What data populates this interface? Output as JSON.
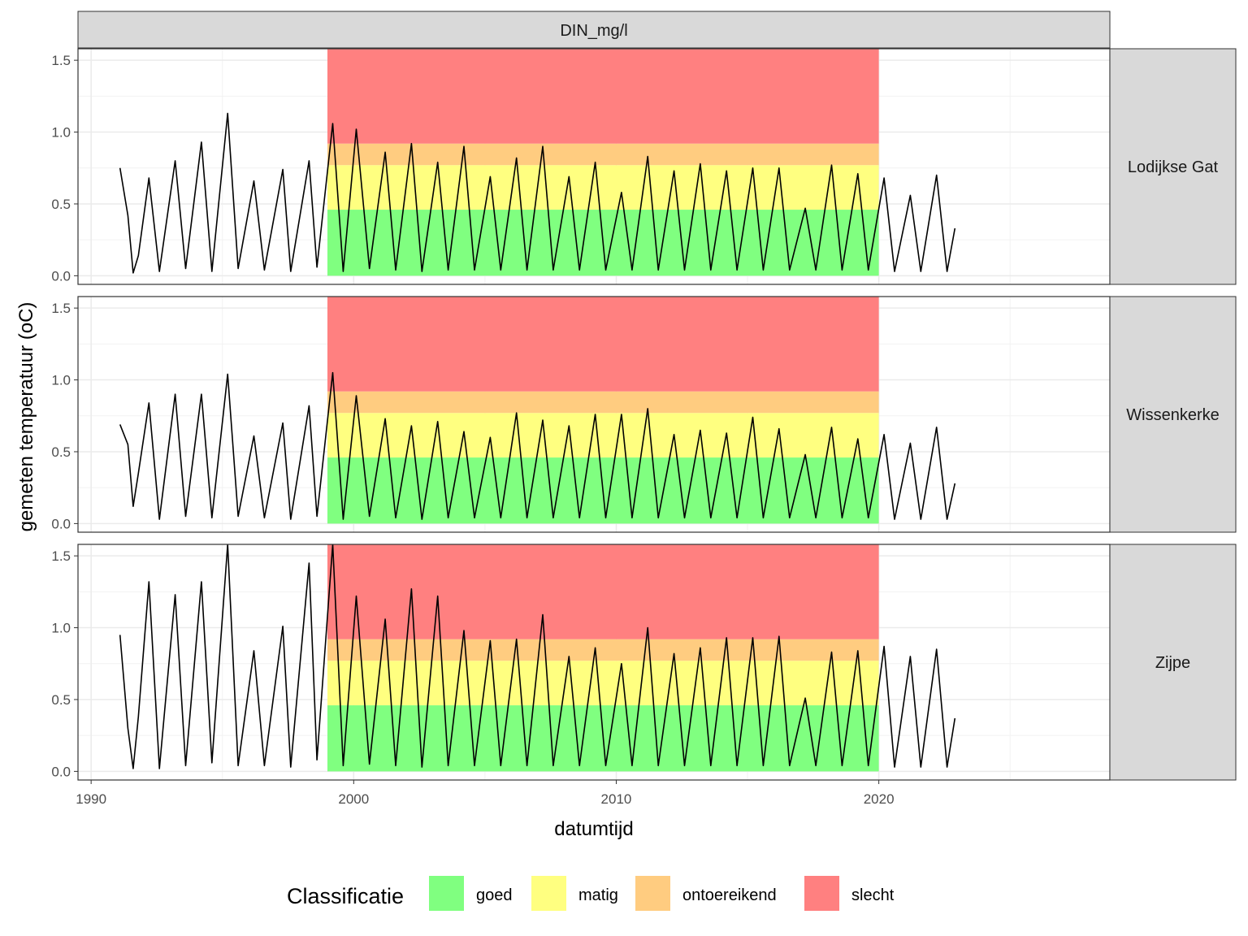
{
  "chart_data": {
    "type": "line",
    "facet_column_label": "DIN_mg/l",
    "xlabel": "datumtijd",
    "ylabel": "gemeten temperatuur (oC)",
    "xlim": [
      1989.5,
      2028.8
    ],
    "ylim": [
      -0.06,
      1.58
    ],
    "x_ticks": [
      1990,
      2000,
      2010,
      2020
    ],
    "y_ticks": [
      0.0,
      0.5,
      1.0,
      1.5
    ],
    "y_tick_labels": [
      "0.0",
      "0.5",
      "1.0",
      "1.5"
    ],
    "x_tick_labels": [
      "1990",
      "2000",
      "2010",
      "2020"
    ],
    "grid": true,
    "legend_position": "bottom",
    "legend": {
      "title": "Classificatie",
      "items": [
        {
          "label": "goed",
          "color": "#80ff80"
        },
        {
          "label": "matig",
          "color": "#ffff80"
        },
        {
          "label": "ontoereikend",
          "color": "#ffcc80"
        },
        {
          "label": "slecht",
          "color": "#ff8080"
        }
      ]
    },
    "classification_bands": {
      "x_range": [
        1999.0,
        2020.0
      ],
      "bands": [
        {
          "label": "goed",
          "ymin": 0.0,
          "ymax": 0.46,
          "color": "#80ff80"
        },
        {
          "label": "matig",
          "ymin": 0.46,
          "ymax": 0.77,
          "color": "#ffff80"
        },
        {
          "label": "ontoereikend",
          "ymin": 0.77,
          "ymax": 0.92,
          "color": "#ffcc80"
        },
        {
          "label": "slecht",
          "ymin": 0.92,
          "ymax": 1.58,
          "color": "#ff8080"
        }
      ]
    },
    "panels": [
      {
        "name": "Lodijkse Gat",
        "x": [
          1991.1,
          1991.4,
          1991.6,
          1991.8,
          1992.2,
          1992.6,
          1993.2,
          1993.6,
          1994.2,
          1994.6,
          1995.2,
          1995.6,
          1996.2,
          1996.6,
          1997.3,
          1997.6,
          1998.3,
          1998.6,
          1999.2,
          1999.6,
          2000.1,
          2000.6,
          2001.2,
          2001.6,
          2002.2,
          2002.6,
          2003.2,
          2003.6,
          2004.2,
          2004.6,
          2005.2,
          2005.6,
          2006.2,
          2006.6,
          2007.2,
          2007.6,
          2008.2,
          2008.6,
          2009.2,
          2009.6,
          2010.2,
          2010.6,
          2011.2,
          2011.6,
          2012.2,
          2012.6,
          2013.2,
          2013.6,
          2014.2,
          2014.6,
          2015.2,
          2015.6,
          2016.2,
          2016.6,
          2017.2,
          2017.6,
          2018.2,
          2018.6,
          2019.2,
          2019.6,
          2020.2,
          2020.6,
          2021.2,
          2021.6,
          2022.2,
          2022.6,
          2022.9
        ],
        "y": [
          0.75,
          0.42,
          0.02,
          0.14,
          0.68,
          0.03,
          0.8,
          0.05,
          0.93,
          0.03,
          1.13,
          0.05,
          0.66,
          0.04,
          0.74,
          0.03,
          0.8,
          0.06,
          1.06,
          0.03,
          1.02,
          0.05,
          0.86,
          0.04,
          0.92,
          0.03,
          0.79,
          0.04,
          0.9,
          0.04,
          0.69,
          0.04,
          0.82,
          0.04,
          0.9,
          0.04,
          0.69,
          0.04,
          0.79,
          0.04,
          0.58,
          0.04,
          0.83,
          0.04,
          0.73,
          0.04,
          0.78,
          0.04,
          0.73,
          0.04,
          0.75,
          0.04,
          0.75,
          0.04,
          0.47,
          0.04,
          0.77,
          0.04,
          0.71,
          0.04,
          0.68,
          0.03,
          0.56,
          0.03,
          0.7,
          0.03,
          0.33
        ]
      },
      {
        "name": "Wissenkerke",
        "x": [
          1991.1,
          1991.4,
          1991.6,
          1991.8,
          1992.2,
          1992.6,
          1993.2,
          1993.6,
          1994.2,
          1994.6,
          1995.2,
          1995.6,
          1996.2,
          1996.6,
          1997.3,
          1997.6,
          1998.3,
          1998.6,
          1999.2,
          1999.6,
          2000.1,
          2000.6,
          2001.2,
          2001.6,
          2002.2,
          2002.6,
          2003.2,
          2003.6,
          2004.2,
          2004.6,
          2005.2,
          2005.6,
          2006.2,
          2006.6,
          2007.2,
          2007.6,
          2008.2,
          2008.6,
          2009.2,
          2009.6,
          2010.2,
          2010.6,
          2011.2,
          2011.6,
          2012.2,
          2012.6,
          2013.2,
          2013.6,
          2014.2,
          2014.6,
          2015.2,
          2015.6,
          2016.2,
          2016.6,
          2017.2,
          2017.6,
          2018.2,
          2018.6,
          2019.2,
          2019.6,
          2020.2,
          2020.6,
          2021.2,
          2021.6,
          2022.2,
          2022.6,
          2022.9
        ],
        "y": [
          0.69,
          0.55,
          0.12,
          0.35,
          0.84,
          0.03,
          0.9,
          0.05,
          0.9,
          0.04,
          1.04,
          0.05,
          0.61,
          0.04,
          0.7,
          0.03,
          0.82,
          0.05,
          1.05,
          0.03,
          0.89,
          0.05,
          0.73,
          0.04,
          0.68,
          0.03,
          0.71,
          0.04,
          0.64,
          0.04,
          0.6,
          0.04,
          0.77,
          0.04,
          0.72,
          0.04,
          0.68,
          0.04,
          0.76,
          0.04,
          0.76,
          0.04,
          0.8,
          0.04,
          0.62,
          0.04,
          0.65,
          0.04,
          0.63,
          0.04,
          0.74,
          0.04,
          0.66,
          0.04,
          0.48,
          0.04,
          0.67,
          0.04,
          0.59,
          0.04,
          0.62,
          0.03,
          0.56,
          0.03,
          0.67,
          0.03,
          0.28
        ]
      },
      {
        "name": "Zijpe",
        "x": [
          1991.1,
          1991.4,
          1991.6,
          1991.8,
          1992.2,
          1992.6,
          1993.2,
          1993.6,
          1994.2,
          1994.6,
          1995.2,
          1995.6,
          1996.2,
          1996.6,
          1997.3,
          1997.6,
          1998.3,
          1998.6,
          1999.2,
          1999.6,
          2000.1,
          2000.6,
          2001.2,
          2001.6,
          2002.2,
          2002.6,
          2003.2,
          2003.6,
          2004.2,
          2004.6,
          2005.2,
          2005.6,
          2006.2,
          2006.6,
          2007.2,
          2007.6,
          2008.2,
          2008.6,
          2009.2,
          2009.6,
          2010.2,
          2010.6,
          2011.2,
          2011.6,
          2012.2,
          2012.6,
          2013.2,
          2013.6,
          2014.2,
          2014.6,
          2015.2,
          2015.6,
          2016.2,
          2016.6,
          2017.2,
          2017.6,
          2018.2,
          2018.6,
          2019.2,
          2019.6,
          2020.2,
          2020.6,
          2021.2,
          2021.6,
          2022.2,
          2022.6,
          2022.9
        ],
        "y": [
          0.95,
          0.3,
          0.02,
          0.38,
          1.32,
          0.02,
          1.23,
          0.04,
          1.32,
          0.06,
          1.58,
          0.04,
          0.84,
          0.04,
          1.01,
          0.03,
          1.45,
          0.08,
          1.58,
          0.04,
          1.22,
          0.05,
          1.06,
          0.04,
          1.27,
          0.03,
          1.22,
          0.04,
          0.98,
          0.04,
          0.91,
          0.04,
          0.92,
          0.04,
          1.09,
          0.04,
          0.8,
          0.04,
          0.86,
          0.04,
          0.75,
          0.04,
          1.0,
          0.04,
          0.82,
          0.04,
          0.86,
          0.04,
          0.93,
          0.04,
          0.93,
          0.04,
          0.94,
          0.04,
          0.51,
          0.04,
          0.83,
          0.04,
          0.84,
          0.04,
          0.87,
          0.03,
          0.8,
          0.03,
          0.85,
          0.03,
          0.37
        ]
      }
    ]
  }
}
